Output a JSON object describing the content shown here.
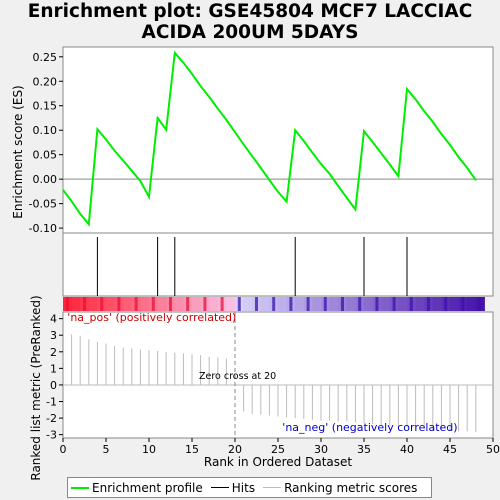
{
  "title_line1": "Enrichment plot: GSE45804 MCF7 LACCIAC",
  "title_line2": "ACIDA 200UM 5DAYS",
  "colors": {
    "es_line": "#00ee00",
    "hits": "#000000",
    "ranking": "#bbbbbb",
    "pos_label": "#cc0000",
    "neg_label": "#0000cc"
  },
  "chart_data": {
    "type": "line",
    "xlabel": "Rank in Ordered Dataset",
    "es_ylabel": "Enrichment score (ES)",
    "metric_ylabel": "Ranked list metric (PreRanked)",
    "xlim": [
      0,
      50
    ],
    "es_ylim": [
      -0.11,
      0.27
    ],
    "metric_ylim": [
      -3.2,
      4.4
    ],
    "x_ticks": [
      0,
      5,
      10,
      15,
      20,
      25,
      30,
      35,
      40,
      45,
      50
    ],
    "es_ticks": [
      -0.1,
      -0.05,
      0.0,
      0.05,
      0.1,
      0.15,
      0.2,
      0.25
    ],
    "es_tick_labels": [
      "-0.10",
      "-0.05",
      "0.00",
      "0.05",
      "0.10",
      "0.15",
      "0.20",
      "0.25"
    ],
    "metric_ticks": [
      -3,
      -2,
      -1,
      0,
      1,
      2,
      3,
      4
    ],
    "enrichment_profile": {
      "x": [
        0,
        1,
        2,
        3,
        4,
        5,
        6,
        7,
        8,
        9,
        10,
        11,
        12,
        13,
        14,
        15,
        16,
        17,
        18,
        19,
        20,
        21,
        22,
        23,
        24,
        25,
        26,
        27,
        28,
        29,
        30,
        31,
        32,
        33,
        34,
        35,
        36,
        37,
        38,
        39,
        40,
        41,
        42,
        43,
        44,
        45,
        46,
        47,
        48
      ],
      "y": [
        -0.022,
        -0.045,
        -0.071,
        -0.092,
        0.102,
        0.081,
        0.058,
        0.038,
        0.017,
        -0.004,
        -0.036,
        0.125,
        0.101,
        0.258,
        0.238,
        0.215,
        0.19,
        0.168,
        0.144,
        0.121,
        0.096,
        0.071,
        0.047,
        0.023,
        -0.002,
        -0.026,
        -0.046,
        0.1,
        0.078,
        0.054,
        0.031,
        0.011,
        -0.014,
        -0.038,
        -0.062,
        0.098,
        0.076,
        0.053,
        0.03,
        0.006,
        0.184,
        0.163,
        0.139,
        0.117,
        0.092,
        0.07,
        0.045,
        0.023,
        -0.002
      ]
    },
    "hits": [
      4,
      11,
      13,
      27,
      35,
      40
    ],
    "ranking_metric": {
      "x": [
        1,
        2,
        3,
        4,
        5,
        6,
        7,
        8,
        9,
        10,
        11,
        12,
        13,
        14,
        15,
        16,
        17,
        18,
        19,
        20,
        21,
        22,
        23,
        24,
        25,
        26,
        27,
        28,
        29,
        30,
        31,
        32,
        33,
        34,
        35,
        36,
        37,
        38,
        39,
        40,
        41,
        42,
        43,
        44,
        45,
        46,
        47,
        48
      ],
      "y": [
        3.05,
        2.95,
        2.75,
        2.6,
        2.5,
        2.35,
        2.25,
        2.2,
        2.15,
        2.1,
        2.05,
        2.0,
        1.95,
        1.9,
        1.85,
        1.8,
        1.7,
        1.65,
        1.6,
        0.0,
        -1.6,
        -1.75,
        -1.8,
        -1.85,
        -1.9,
        -1.95,
        -2.0,
        -2.05,
        -2.1,
        -2.15,
        -2.15,
        -2.2,
        -2.2,
        -2.25,
        -2.3,
        -2.35,
        -2.4,
        -2.45,
        -2.5,
        -2.55,
        -2.6,
        -2.65,
        -2.7,
        -2.7,
        -2.75,
        -2.8,
        -2.8,
        -2.85
      ]
    },
    "zero_cross_at": 20,
    "zero_cross_label": "Zero cross at 20",
    "pos_label": "'na_pos' (positively correlated)",
    "neg_label": "'na_neg' (negatively correlated)"
  },
  "legend": {
    "enrichment": "Enrichment profile",
    "hits": "Hits",
    "ranking": "Ranking metric scores"
  }
}
